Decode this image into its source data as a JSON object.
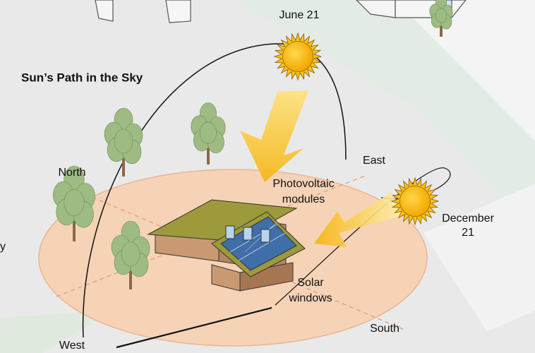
{
  "title": "Sun’s Path in the Sky",
  "labels": {
    "june": "June 21",
    "north": "North",
    "east": "East",
    "photovoltaic": [
      "Photovoltaic",
      "modules"
    ],
    "december": [
      "December",
      "21"
    ],
    "solar_windows": [
      "Solar",
      "windows"
    ],
    "south": "South",
    "west": "West",
    "edge_fragment": "y"
  }
}
